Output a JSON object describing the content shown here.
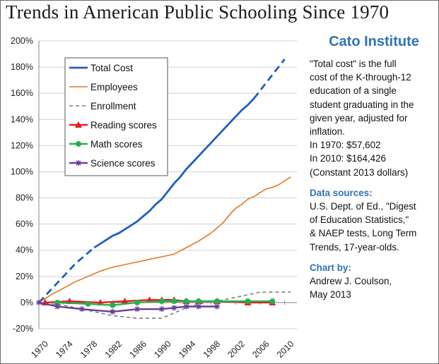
{
  "chart_data": {
    "type": "line",
    "title": "Trends in American Public Schooling Since 1970",
    "xlim": [
      1970,
      2012
    ],
    "ylim": [
      -20,
      200
    ],
    "y_ticks": [
      "-20%",
      "0%",
      "20%",
      "40%",
      "60%",
      "80%",
      "100%",
      "120%",
      "140%",
      "160%",
      "180%",
      "200%"
    ],
    "x_ticks": [
      "1970",
      "1974",
      "1978",
      "1982",
      "1986",
      "1990",
      "1994",
      "1998",
      "2002",
      "2006",
      "2010"
    ],
    "grid": "horizontal",
    "legend_position": "top-left",
    "series": [
      {
        "name": "Total Cost",
        "color": "#1f5fbf",
        "style": "solid-with-dashed-segments",
        "dashed_segments": [
          [
            1970,
            1979
          ],
          [
            2005,
            2010
          ]
        ],
        "x": [
          1970,
          1971,
          1972,
          1973,
          1974,
          1975,
          1976,
          1977,
          1978,
          1979,
          1980,
          1981,
          1982,
          1983,
          1984,
          1985,
          1986,
          1987,
          1988,
          1989,
          1990,
          1991,
          1992,
          1993,
          1994,
          1995,
          1996,
          1997,
          1998,
          1999,
          2000,
          2001,
          2002,
          2003,
          2004,
          2005,
          2006,
          2007,
          2008,
          2009,
          2010
        ],
        "values": [
          0,
          5,
          10,
          15,
          20,
          25,
          30,
          34,
          38,
          42,
          45,
          48,
          51,
          53,
          56,
          59,
          62,
          66,
          70,
          75,
          79,
          85,
          91,
          96,
          102,
          107,
          112,
          117,
          122,
          127,
          132,
          137,
          142,
          147,
          151,
          156,
          162,
          168,
          174,
          180,
          186
        ]
      },
      {
        "name": "Employees",
        "color": "#e07b20",
        "style": "solid",
        "x": [
          1970,
          1972,
          1974,
          1976,
          1978,
          1980,
          1982,
          1984,
          1986,
          1988,
          1990,
          1992,
          1994,
          1996,
          1998,
          2000,
          2001,
          2002,
          2003,
          2004,
          2005,
          2006,
          2007,
          2008,
          2009,
          2010,
          2011
        ],
        "values": [
          0,
          6,
          11,
          16,
          20,
          24,
          27,
          29,
          31,
          33,
          35,
          37,
          42,
          47,
          53,
          61,
          67,
          72,
          75,
          79,
          81,
          84,
          87,
          88,
          90,
          93,
          96
        ]
      },
      {
        "name": "Enrollment",
        "color": "#7f7f7f",
        "style": "dashed",
        "x": [
          1970,
          1972,
          1974,
          1976,
          1978,
          1980,
          1982,
          1984,
          1986,
          1988,
          1990,
          1992,
          1994,
          1996,
          1998,
          2000,
          2002,
          2004,
          2006,
          2008,
          2010,
          2011
        ],
        "values": [
          0,
          -1,
          -2,
          -4,
          -6,
          -8,
          -10,
          -11,
          -12,
          -12,
          -12,
          -8,
          -4,
          -1,
          1,
          2,
          4,
          6,
          8,
          8,
          8,
          8
        ]
      },
      {
        "name": "Reading scores",
        "color": "#e8191e",
        "style": "solid-with-triangle-markers",
        "x": [
          1971,
          1975,
          1980,
          1984,
          1988,
          1990,
          1992,
          1994,
          1996,
          1999,
          2004,
          2008
        ],
        "values": [
          0,
          1,
          0,
          1,
          2,
          2,
          2,
          1,
          1,
          1,
          0,
          0
        ]
      },
      {
        "name": "Math scores",
        "color": "#22b14c",
        "style": "solid-with-circle-markers",
        "x": [
          1973,
          1978,
          1982,
          1986,
          1990,
          1992,
          1994,
          1996,
          1999,
          2004,
          2008
        ],
        "values": [
          0,
          -1,
          -2,
          0,
          1,
          1,
          1,
          1,
          1,
          1,
          1
        ]
      },
      {
        "name": "Science scores",
        "color": "#6a3d9a",
        "style": "solid-with-star-markers",
        "x": [
          1970,
          1973,
          1977,
          1982,
          1986,
          1990,
          1992,
          1994,
          1996,
          1999
        ],
        "values": [
          0,
          -3,
          -5,
          -7,
          -5,
          -5,
          -4,
          -3,
          -3,
          -3
        ]
      }
    ]
  },
  "side_panel": {
    "brand": "Cato Institute",
    "note_lines": [
      "\"Total cost\" is the full",
      "cost of the K-through-12",
      "education of a single",
      "student graduating in the",
      "given year, adjusted for",
      "inflation.",
      "In 1970:   $57,602",
      "In 2010:  $164,426",
      "(Constant 2013 dollars)"
    ],
    "sources_title": "Data sources:",
    "sources_lines": [
      "U.S. Dept. of Ed., \"Digest",
      "of Education Statistics,\"",
      "& NAEP tests, Long Term",
      "Trends, 17-year-olds."
    ],
    "byline_title": "Chart by:",
    "byline_lines": [
      "Andrew J. Coulson,",
      "May 2013"
    ]
  }
}
